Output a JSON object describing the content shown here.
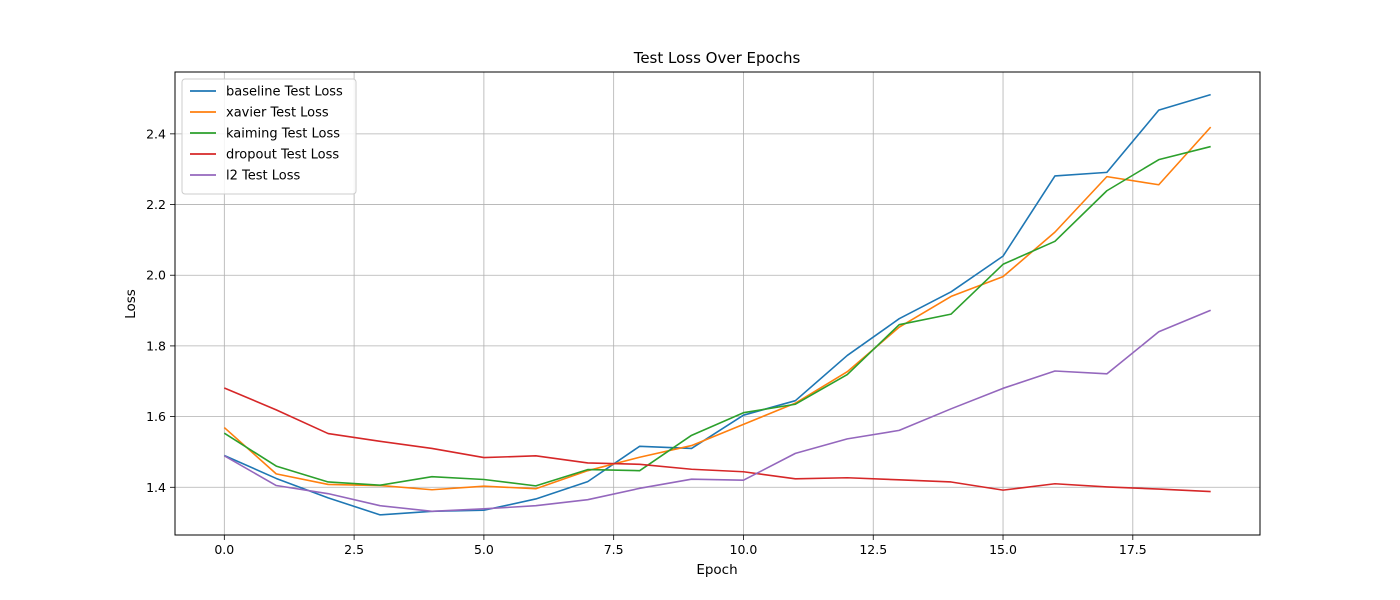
{
  "chart_data": {
    "type": "line",
    "title": "Test Loss Over Epochs",
    "xlabel": "Epoch",
    "ylabel": "Loss",
    "xlim": [
      -0.95,
      19.95
    ],
    "ylim": [
      1.265,
      2.575
    ],
    "xticks": [
      0.0,
      2.5,
      5.0,
      7.5,
      10.0,
      12.5,
      15.0,
      17.5
    ],
    "xtick_labels": [
      "0.0",
      "2.5",
      "5.0",
      "7.5",
      "10.0",
      "12.5",
      "15.0",
      "17.5"
    ],
    "yticks": [
      1.4,
      1.6,
      1.8,
      2.0,
      2.2,
      2.4
    ],
    "ytick_labels": [
      "1.4",
      "1.6",
      "1.8",
      "2.0",
      "2.2",
      "2.4"
    ],
    "grid": true,
    "legend_position": "top-left",
    "x": [
      0,
      1,
      2,
      3,
      4,
      5,
      6,
      7,
      8,
      9,
      10,
      11,
      12,
      13,
      14,
      15,
      16,
      17,
      18,
      19
    ],
    "series": [
      {
        "name": "baseline Test Loss",
        "color": "#1f77b4",
        "values": [
          1.49,
          1.425,
          1.37,
          1.322,
          1.332,
          1.335,
          1.367,
          1.416,
          1.516,
          1.51,
          1.604,
          1.645,
          1.773,
          1.877,
          1.953,
          2.054,
          2.281,
          2.291,
          2.467,
          2.511
        ]
      },
      {
        "name": "xavier Test Loss",
        "color": "#ff7f0e",
        "values": [
          1.569,
          1.438,
          1.408,
          1.405,
          1.393,
          1.403,
          1.396,
          1.447,
          1.485,
          1.518,
          1.578,
          1.638,
          1.727,
          1.853,
          1.94,
          1.996,
          2.122,
          2.279,
          2.256,
          2.419
        ]
      },
      {
        "name": "kaiming Test Loss",
        "color": "#2ca02c",
        "values": [
          1.553,
          1.46,
          1.415,
          1.406,
          1.43,
          1.422,
          1.404,
          1.45,
          1.447,
          1.547,
          1.611,
          1.635,
          1.719,
          1.86,
          1.89,
          2.031,
          2.096,
          2.239,
          2.327,
          2.364
        ]
      },
      {
        "name": "dropout Test Loss",
        "color": "#d62728",
        "values": [
          1.681,
          1.619,
          1.552,
          1.53,
          1.51,
          1.484,
          1.489,
          1.469,
          1.465,
          1.451,
          1.444,
          1.424,
          1.427,
          1.421,
          1.415,
          1.392,
          1.41,
          1.401,
          1.395,
          1.388
        ]
      },
      {
        "name": "l2 Test Loss",
        "color": "#9467bd",
        "values": [
          1.489,
          1.405,
          1.382,
          1.348,
          1.332,
          1.339,
          1.348,
          1.365,
          1.397,
          1.423,
          1.42,
          1.496,
          1.537,
          1.561,
          1.622,
          1.68,
          1.729,
          1.721,
          1.84,
          1.901
        ]
      }
    ]
  }
}
